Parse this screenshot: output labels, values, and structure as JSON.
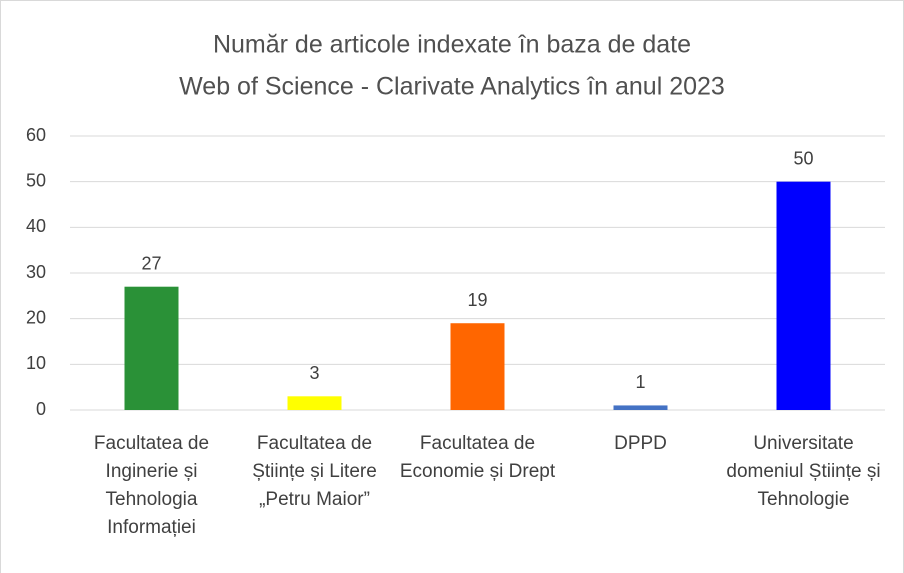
{
  "chart_data": {
    "type": "bar",
    "title": [
      "Număr de articole indexate în baza de date",
      "Web of Science - Clarivate Analytics în anul 2023"
    ],
    "categories": [
      "Facultatea de Inginerie și Tehnologia Informației",
      "Facultatea de Științe și Litere „Petru Maior”",
      "Facultatea de Economie și Drept",
      "DPPD",
      "Universitate domeniul Științe și Tehnologie"
    ],
    "values": [
      27,
      3,
      19,
      1,
      50
    ],
    "colors": [
      "#2a9137",
      "#ffff00",
      "#ff6600",
      "#4472c4",
      "#0000ff"
    ],
    "ylim": [
      0,
      60
    ],
    "yticks": [
      0,
      10,
      20,
      30,
      40,
      50,
      60
    ],
    "grid": true
  }
}
